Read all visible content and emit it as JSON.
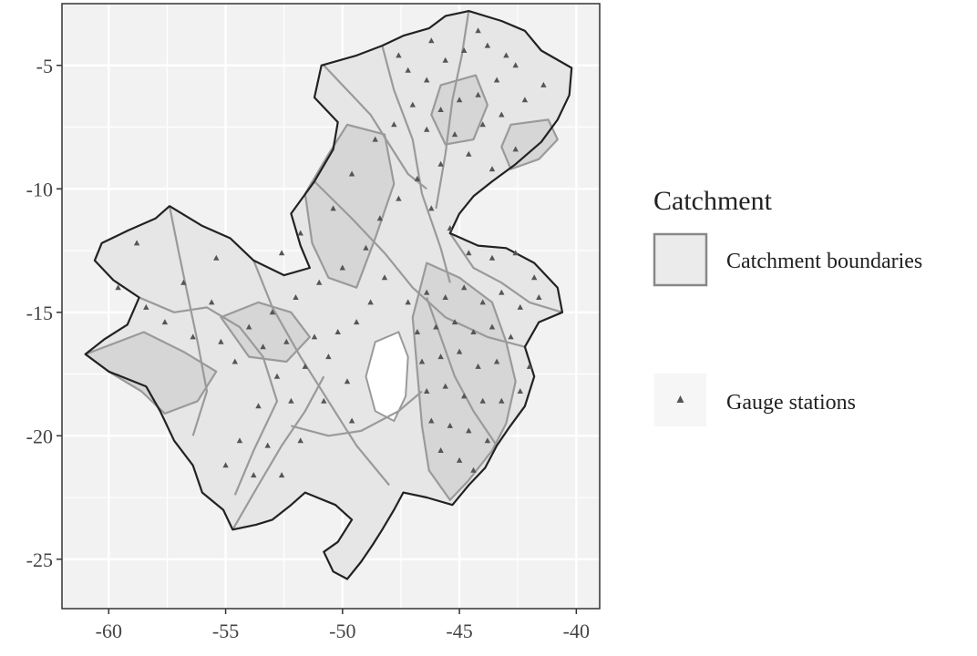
{
  "chart_data": {
    "type": "map",
    "title": "",
    "xlabel": "",
    "ylabel": "",
    "xlim": [
      -62,
      -39
    ],
    "ylim": [
      -27,
      -2.5
    ],
    "x_ticks": [
      -60,
      -55,
      -50,
      -45,
      -40
    ],
    "y_ticks": [
      -5,
      -10,
      -15,
      -20,
      -25
    ],
    "x_tick_labels": [
      "-60",
      "-55",
      "-50",
      "-45",
      "-40"
    ],
    "y_tick_labels": [
      "-5",
      "-10",
      "-15",
      "-20",
      "-25"
    ],
    "grid": true,
    "legend": {
      "title": "Catchment",
      "placement": "right",
      "entries": [
        {
          "label": "Catchment boundaries",
          "symbol": "filled-rectangle",
          "fill": "#ebebeb",
          "stroke": "#888888"
        },
        {
          "label": "Gauge stations",
          "symbol": "triangle",
          "fill": "#555555"
        }
      ]
    },
    "colors": {
      "panel": "#f2f2f2",
      "grid": "#ffffff",
      "catchment_fill": "#d6d6d6",
      "catchment_stroke": "#9a9a9a",
      "outline": "#222222",
      "station": "#555555"
    },
    "region_outline_lonlat": [
      [
        -43.2,
        -3.2
      ],
      [
        -42.2,
        -3.6
      ],
      [
        -41.5,
        -4.4
      ],
      [
        -40.2,
        -5.1
      ],
      [
        -40.3,
        -6.2
      ],
      [
        -40.8,
        -7.2
      ],
      [
        -41.5,
        -8.1
      ],
      [
        -42.6,
        -9.0
      ],
      [
        -43.6,
        -9.7
      ],
      [
        -44.4,
        -10.3
      ],
      [
        -45.0,
        -11.0
      ],
      [
        -45.4,
        -11.8
      ],
      [
        -44.2,
        -12.3
      ],
      [
        -43.0,
        -12.4
      ],
      [
        -41.8,
        -13.0
      ],
      [
        -40.8,
        -14.0
      ],
      [
        -40.6,
        -15.0
      ],
      [
        -41.6,
        -15.4
      ],
      [
        -42.2,
        -16.4
      ],
      [
        -41.8,
        -17.6
      ],
      [
        -42.2,
        -18.8
      ],
      [
        -42.9,
        -19.7
      ],
      [
        -43.4,
        -20.4
      ],
      [
        -43.9,
        -21.3
      ],
      [
        -44.6,
        -22.0
      ],
      [
        -45.3,
        -22.8
      ],
      [
        -46.4,
        -22.5
      ],
      [
        -47.4,
        -22.3
      ],
      [
        -47.8,
        -23.0
      ],
      [
        -48.3,
        -23.8
      ],
      [
        -48.7,
        -24.4
      ],
      [
        -49.2,
        -25.1
      ],
      [
        -49.8,
        -25.8
      ],
      [
        -50.4,
        -25.5
      ],
      [
        -50.8,
        -24.7
      ],
      [
        -50.2,
        -24.3
      ],
      [
        -49.6,
        -23.4
      ],
      [
        -50.3,
        -22.8
      ],
      [
        -51.6,
        -22.3
      ],
      [
        -52.2,
        -22.8
      ],
      [
        -53.0,
        -23.4
      ],
      [
        -53.7,
        -23.6
      ],
      [
        -54.7,
        -23.8
      ],
      [
        -55.1,
        -23.0
      ],
      [
        -56.0,
        -22.3
      ],
      [
        -56.4,
        -21.2
      ],
      [
        -57.2,
        -20.2
      ],
      [
        -57.8,
        -19.0
      ],
      [
        -58.4,
        -18.0
      ],
      [
        -60.0,
        -17.4
      ],
      [
        -61.0,
        -16.7
      ],
      [
        -60.2,
        -16.1
      ],
      [
        -59.2,
        -15.5
      ],
      [
        -58.7,
        -14.4
      ],
      [
        -59.8,
        -13.7
      ],
      [
        -60.6,
        -12.9
      ],
      [
        -60.3,
        -12.2
      ],
      [
        -59.2,
        -11.7
      ],
      [
        -58.0,
        -11.2
      ],
      [
        -57.4,
        -10.7
      ],
      [
        -56.0,
        -11.5
      ],
      [
        -54.8,
        -12.0
      ],
      [
        -53.8,
        -12.9
      ],
      [
        -52.5,
        -13.5
      ],
      [
        -51.4,
        -13.2
      ],
      [
        -51.8,
        -12.3
      ],
      [
        -52.2,
        -11.0
      ],
      [
        -51.2,
        -9.7
      ],
      [
        -50.4,
        -8.4
      ],
      [
        -50.2,
        -7.3
      ],
      [
        -51.2,
        -6.3
      ],
      [
        -50.9,
        -5.0
      ],
      [
        -49.4,
        -4.6
      ],
      [
        -48.3,
        -4.2
      ],
      [
        -47.4,
        -3.8
      ],
      [
        -46.3,
        -3.5
      ],
      [
        -45.6,
        -3.0
      ],
      [
        -44.6,
        -2.8
      ],
      [
        -43.2,
        -3.2
      ]
    ],
    "shaded_catchments_lonlat": [
      [
        [
          -61.0,
          -16.7
        ],
        [
          -58.5,
          -15.8
        ],
        [
          -56.8,
          -16.6
        ],
        [
          -55.4,
          -17.4
        ],
        [
          -56.2,
          -18.6
        ],
        [
          -57.6,
          -19.1
        ],
        [
          -58.6,
          -18.2
        ],
        [
          -60.0,
          -17.4
        ]
      ],
      [
        [
          -49.8,
          -7.4
        ],
        [
          -48.2,
          -7.8
        ],
        [
          -47.8,
          -9.8
        ],
        [
          -48.6,
          -12.0
        ],
        [
          -49.4,
          -14.0
        ],
        [
          -50.6,
          -13.6
        ],
        [
          -51.3,
          -12.2
        ],
        [
          -51.6,
          -10.2
        ],
        [
          -50.6,
          -8.6
        ]
      ],
      [
        [
          -46.4,
          -13.0
        ],
        [
          -45.0,
          -13.6
        ],
        [
          -43.6,
          -14.6
        ],
        [
          -43.0,
          -16.2
        ],
        [
          -42.6,
          -17.8
        ],
        [
          -43.0,
          -19.5
        ],
        [
          -43.6,
          -20.6
        ],
        [
          -44.6,
          -21.8
        ],
        [
          -45.4,
          -22.6
        ],
        [
          -46.3,
          -21.4
        ],
        [
          -46.6,
          -19.6
        ],
        [
          -46.8,
          -17.4
        ],
        [
          -47.0,
          -15.2
        ]
      ],
      [
        [
          -42.8,
          -7.4
        ],
        [
          -41.2,
          -7.2
        ],
        [
          -40.8,
          -8.0
        ],
        [
          -41.6,
          -8.8
        ],
        [
          -42.8,
          -9.2
        ],
        [
          -43.2,
          -8.3
        ]
      ],
      [
        [
          -45.8,
          -5.8
        ],
        [
          -44.3,
          -5.4
        ],
        [
          -43.8,
          -6.6
        ],
        [
          -44.4,
          -8.0
        ],
        [
          -45.6,
          -8.2
        ],
        [
          -46.2,
          -7.0
        ]
      ],
      [
        [
          -55.2,
          -15.2
        ],
        [
          -53.6,
          -14.6
        ],
        [
          -52.2,
          -15.0
        ],
        [
          -51.4,
          -16.0
        ],
        [
          -52.4,
          -17.0
        ],
        [
          -54.0,
          -16.8
        ]
      ]
    ],
    "internal_boundaries_lonlat": [
      [
        [
          -53.8,
          -12.9
        ],
        [
          -53.0,
          -14.8
        ],
        [
          -51.8,
          -16.8
        ],
        [
          -50.6,
          -18.6
        ],
        [
          -49.4,
          -20.4
        ],
        [
          -48.0,
          -22.0
        ]
      ],
      [
        [
          -51.2,
          -9.7
        ],
        [
          -49.6,
          -11.2
        ],
        [
          -48.2,
          -12.6
        ],
        [
          -47.0,
          -14.0
        ],
        [
          -45.6,
          -15.2
        ],
        [
          -43.8,
          -16.0
        ],
        [
          -42.2,
          -16.4
        ]
      ],
      [
        [
          -48.3,
          -4.2
        ],
        [
          -47.8,
          -6.0
        ],
        [
          -47.0,
          -8.0
        ],
        [
          -46.6,
          -10.2
        ],
        [
          -45.8,
          -12.4
        ],
        [
          -45.4,
          -13.8
        ]
      ],
      [
        [
          -44.6,
          -2.8
        ],
        [
          -44.9,
          -4.6
        ],
        [
          -45.3,
          -6.4
        ],
        [
          -45.6,
          -8.6
        ],
        [
          -46.0,
          -10.8
        ]
      ],
      [
        [
          -58.7,
          -14.4
        ],
        [
          -57.2,
          -15.0
        ],
        [
          -55.8,
          -14.8
        ],
        [
          -54.4,
          -15.6
        ],
        [
          -53.4,
          -16.8
        ],
        [
          -52.8,
          -18.6
        ],
        [
          -53.8,
          -20.6
        ],
        [
          -54.6,
          -22.4
        ]
      ],
      [
        [
          -57.4,
          -10.7
        ],
        [
          -57.0,
          -12.6
        ],
        [
          -56.6,
          -14.4
        ],
        [
          -56.2,
          -16.2
        ],
        [
          -55.8,
          -18.2
        ],
        [
          -56.4,
          -20.0
        ]
      ],
      [
        [
          -50.8,
          -5.0
        ],
        [
          -49.6,
          -6.2
        ],
        [
          -48.8,
          -7.0
        ],
        [
          -48.0,
          -8.2
        ],
        [
          -47.2,
          -9.4
        ],
        [
          -46.4,
          -10.0
        ]
      ],
      [
        [
          -52.2,
          -19.6
        ],
        [
          -50.6,
          -20.0
        ],
        [
          -49.2,
          -19.8
        ],
        [
          -47.6,
          -19.0
        ],
        [
          -46.6,
          -18.2
        ]
      ],
      [
        [
          -54.7,
          -23.8
        ],
        [
          -53.6,
          -22.0
        ],
        [
          -52.6,
          -20.4
        ],
        [
          -51.6,
          -19.0
        ],
        [
          -50.8,
          -17.6
        ]
      ],
      [
        [
          -43.4,
          -20.4
        ],
        [
          -44.4,
          -19.0
        ],
        [
          -45.2,
          -17.6
        ],
        [
          -45.8,
          -16.0
        ],
        [
          -46.4,
          -14.4
        ]
      ],
      [
        [
          -40.6,
          -15.0
        ],
        [
          -42.0,
          -14.6
        ],
        [
          -43.2,
          -13.8
        ],
        [
          -44.4,
          -13.2
        ],
        [
          -45.4,
          -11.8
        ]
      ]
    ],
    "hole_lonlat": [
      [
        -48.6,
        -16.2
      ],
      [
        -47.6,
        -15.8
      ],
      [
        -47.2,
        -16.8
      ],
      [
        -47.3,
        -18.4
      ],
      [
        -47.8,
        -19.4
      ],
      [
        -48.6,
        -19.0
      ],
      [
        -49.0,
        -17.6
      ]
    ],
    "gauge_stations_lonlat": [
      [
        -44.2,
        -3.6
      ],
      [
        -43.8,
        -4.2
      ],
      [
        -43.0,
        -4.6
      ],
      [
        -44.8,
        -4.4
      ],
      [
        -45.6,
        -4.8
      ],
      [
        -46.4,
        -5.6
      ],
      [
        -47.2,
        -5.2
      ],
      [
        -42.6,
        -5.0
      ],
      [
        -43.4,
        -5.6
      ],
      [
        -44.2,
        -6.2
      ],
      [
        -45.0,
        -6.4
      ],
      [
        -45.8,
        -6.8
      ],
      [
        -47.0,
        -6.6
      ],
      [
        -47.8,
        -7.4
      ],
      [
        -48.6,
        -8.0
      ],
      [
        -46.4,
        -7.6
      ],
      [
        -45.2,
        -7.8
      ],
      [
        -44.0,
        -7.4
      ],
      [
        -43.2,
        -7.0
      ],
      [
        -42.2,
        -6.4
      ],
      [
        -41.4,
        -5.8
      ],
      [
        -44.6,
        -8.6
      ],
      [
        -45.8,
        -9.0
      ],
      [
        -46.8,
        -9.6
      ],
      [
        -47.6,
        -10.4
      ],
      [
        -48.4,
        -11.2
      ],
      [
        -49.0,
        -12.4
      ],
      [
        -46.2,
        -10.8
      ],
      [
        -45.4,
        -11.6
      ],
      [
        -50.0,
        -13.2
      ],
      [
        -51.0,
        -13.8
      ],
      [
        -52.0,
        -14.4
      ],
      [
        -53.0,
        -15.0
      ],
      [
        -54.0,
        -15.6
      ],
      [
        -55.2,
        -16.2
      ],
      [
        -56.4,
        -16.0
      ],
      [
        -57.6,
        -15.4
      ],
      [
        -58.4,
        -14.8
      ],
      [
        -59.6,
        -14.0
      ],
      [
        -56.8,
        -13.8
      ],
      [
        -55.6,
        -14.6
      ],
      [
        -54.6,
        -17.0
      ],
      [
        -53.4,
        -16.4
      ],
      [
        -52.4,
        -16.2
      ],
      [
        -51.2,
        -16.0
      ],
      [
        -50.2,
        -15.8
      ],
      [
        -49.4,
        -15.4
      ],
      [
        -52.8,
        -17.6
      ],
      [
        -51.6,
        -17.2
      ],
      [
        -50.6,
        -16.8
      ],
      [
        -49.8,
        -17.8
      ],
      [
        -53.6,
        -18.8
      ],
      [
        -52.2,
        -18.6
      ],
      [
        -50.8,
        -18.6
      ],
      [
        -49.6,
        -19.4
      ],
      [
        -54.4,
        -20.2
      ],
      [
        -53.2,
        -20.4
      ],
      [
        -51.8,
        -20.2
      ],
      [
        -55.0,
        -21.2
      ],
      [
        -53.8,
        -21.6
      ],
      [
        -52.6,
        -21.6
      ],
      [
        -47.2,
        -14.6
      ],
      [
        -46.4,
        -14.2
      ],
      [
        -45.6,
        -14.4
      ],
      [
        -44.8,
        -14.0
      ],
      [
        -44.0,
        -14.6
      ],
      [
        -43.2,
        -14.2
      ],
      [
        -42.4,
        -14.8
      ],
      [
        -41.6,
        -14.4
      ],
      [
        -46.8,
        -15.8
      ],
      [
        -46.0,
        -15.6
      ],
      [
        -45.2,
        -15.4
      ],
      [
        -44.4,
        -15.8
      ],
      [
        -43.6,
        -15.6
      ],
      [
        -42.8,
        -16.0
      ],
      [
        -46.6,
        -17.0
      ],
      [
        -45.8,
        -16.8
      ],
      [
        -45.0,
        -16.6
      ],
      [
        -44.2,
        -17.2
      ],
      [
        -43.4,
        -17.0
      ],
      [
        -46.4,
        -18.2
      ],
      [
        -45.6,
        -18.0
      ],
      [
        -44.8,
        -18.4
      ],
      [
        -44.0,
        -18.6
      ],
      [
        -43.2,
        -18.6
      ],
      [
        -46.2,
        -19.4
      ],
      [
        -45.4,
        -19.6
      ],
      [
        -44.6,
        -19.8
      ],
      [
        -43.8,
        -20.2
      ],
      [
        -45.8,
        -20.6
      ],
      [
        -45.0,
        -21.0
      ],
      [
        -44.4,
        -21.4
      ],
      [
        -42.6,
        -12.6
      ],
      [
        -43.6,
        -12.8
      ],
      [
        -44.6,
        -12.6
      ],
      [
        -41.8,
        -13.6
      ],
      [
        -42.0,
        -17.2
      ],
      [
        -42.4,
        -18.2
      ],
      [
        -48.2,
        -13.6
      ],
      [
        -48.8,
        -14.6
      ],
      [
        -51.8,
        -11.8
      ],
      [
        -52.6,
        -12.6
      ],
      [
        -55.4,
        -12.8
      ],
      [
        -58.8,
        -12.2
      ],
      [
        -47.6,
        -4.6
      ],
      [
        -46.2,
        -4.0
      ],
      [
        -43.6,
        -9.2
      ],
      [
        -42.6,
        -8.4
      ],
      [
        -49.6,
        -9.4
      ],
      [
        -50.4,
        -10.8
      ]
    ]
  }
}
